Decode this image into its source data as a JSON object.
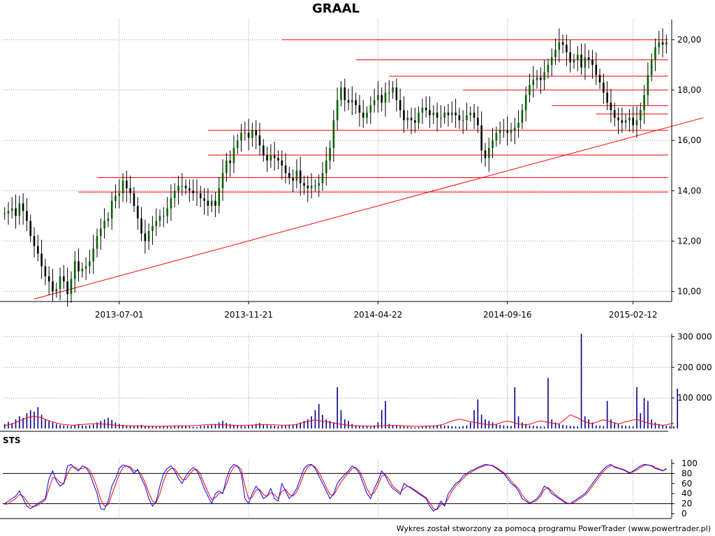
{
  "chart_data": [
    {
      "panel": "price",
      "type": "candlestick",
      "title": "GRAAL",
      "x_dates": [
        "2013-07-01",
        "2013-11-21",
        "2014-04-22",
        "2014-09-16",
        "2015-02-12"
      ],
      "y_ticks": [
        "10,00",
        "12,00",
        "14,00",
        "16,00",
        "18,00",
        "20,00"
      ],
      "ylim": [
        9.6,
        20.8
      ],
      "grid": true,
      "y_axis_side": "right",
      "series_color": "#006400",
      "line_color": "#ff0000",
      "close_series": [
        13.1,
        13.2,
        13.3,
        13.0,
        13.5,
        13.2,
        12.8,
        12.2,
        11.8,
        11.5,
        11.0,
        10.6,
        10.4,
        10.0,
        10.1,
        10.6,
        10.4,
        9.9,
        10.5,
        11.2,
        10.8,
        10.9,
        11.0,
        11.2,
        11.7,
        12.2,
        12.5,
        12.8,
        12.9,
        13.6,
        13.8,
        13.9,
        14.4,
        14.1,
        13.9,
        13.4,
        12.9,
        12.3,
        12.0,
        12.4,
        12.6,
        12.8,
        13.0,
        13.0,
        13.3,
        13.7,
        14.0,
        14.2,
        14.2,
        14.1,
        14.0,
        13.9,
        13.9,
        13.7,
        13.6,
        13.4,
        13.6,
        13.4,
        14.1,
        14.7,
        15.2,
        15.1,
        15.7,
        16.0,
        16.3,
        16.3,
        16.1,
        16.4,
        16.2,
        15.8,
        15.4,
        15.2,
        15.4,
        15.3,
        15.2,
        15.0,
        14.7,
        14.5,
        14.4,
        14.8,
        14.3,
        14.2,
        14.1,
        14.2,
        14.2,
        14.3,
        14.7,
        15.2,
        15.7,
        16.8,
        17.6,
        18.1,
        17.6,
        17.5,
        17.6,
        17.4,
        17.1,
        16.9,
        17.1,
        17.4,
        17.6,
        17.8,
        17.5,
        17.9,
        17.9,
        18.1,
        17.6,
        17.2,
        16.8,
        16.9,
        16.8,
        16.7,
        17.1,
        17.3,
        17.2,
        17.0,
        17.1,
        16.9,
        16.9,
        17.1,
        17.0,
        17.1,
        17.0,
        16.8,
        16.8,
        17.0,
        17.1,
        16.9,
        16.6,
        15.6,
        15.3,
        15.7,
        16.0,
        16.3,
        16.4,
        16.4,
        16.3,
        16.4,
        16.5,
        16.7,
        17.2,
        17.8,
        18.2,
        18.4,
        18.5,
        18.4,
        18.7,
        19.0,
        19.3,
        19.6,
        19.9,
        19.8,
        19.5,
        19.1,
        19.2,
        19.4,
        18.9,
        19.3,
        19.2,
        19.0,
        18.6,
        18.3,
        17.9,
        17.5,
        17.2,
        16.9,
        16.8,
        16.7,
        16.8,
        16.9,
        16.6,
        16.8,
        17.2,
        17.8,
        18.6,
        19.2,
        19.7,
        19.9,
        19.8,
        19.9
      ],
      "support_resistance_levels": [
        20.0,
        19.2,
        18.55,
        18.0,
        17.38,
        17.05,
        16.4,
        15.42,
        14.52,
        13.95
      ],
      "trendline": {
        "from": {
          "date_index": 8,
          "value": 9.7
        },
        "to": {
          "date_index": 189,
          "value": 16.9
        }
      }
    },
    {
      "panel": "volume",
      "type": "bar",
      "y_ticks": [
        "100 000",
        "200 000",
        "300 000"
      ],
      "ylim": [
        0,
        310000
      ],
      "bar_color": "#00008b",
      "avg_line_color": "#ff0000",
      "grid": true,
      "y_axis_side": "right",
      "values": [
        15000,
        22000,
        18000,
        30000,
        40000,
        35000,
        50000,
        60000,
        55000,
        70000,
        45000,
        30000,
        25000,
        20000,
        15000,
        12000,
        10000,
        9000,
        8000,
        12000,
        15000,
        10000,
        9000,
        11000,
        14000,
        20000,
        25000,
        30000,
        35000,
        28000,
        20000,
        15000,
        12000,
        10000,
        9000,
        8000,
        10000,
        12000,
        9000,
        8000,
        7000,
        6000,
        8000,
        9000,
        7000,
        6000,
        8000,
        9000,
        10000,
        8000,
        7000,
        6000,
        5000,
        8000,
        9000,
        10000,
        12000,
        15000,
        20000,
        25000,
        18000,
        15000,
        12000,
        10000,
        9000,
        8000,
        10000,
        12000,
        15000,
        18000,
        14000,
        12000,
        10000,
        9000,
        8000,
        9000,
        10000,
        11000,
        12000,
        15000,
        20000,
        25000,
        30000,
        40000,
        60000,
        80000,
        45000,
        30000,
        25000,
        20000,
        135000,
        60000,
        30000,
        25000,
        15000,
        10000,
        9000,
        8000,
        7000,
        6000,
        10000,
        20000,
        60000,
        90000,
        15000,
        10000,
        9000,
        8000,
        7000,
        6000,
        5000,
        4000,
        5000,
        6000,
        7000,
        8000,
        9000,
        10000,
        12000,
        10000,
        9000,
        8000,
        7000,
        6000,
        8000,
        10000,
        20000,
        60000,
        95000,
        45000,
        30000,
        25000,
        20000,
        15000,
        12000,
        10000,
        9000,
        8000,
        135000,
        40000,
        20000,
        15000,
        10000,
        9000,
        8000,
        7000,
        6000,
        165000,
        30000,
        20000,
        15000,
        12000,
        10000,
        9000,
        8000,
        7000,
        310000,
        40000,
        30000,
        20000,
        10000,
        9000,
        8000,
        90000,
        30000,
        20000,
        15000,
        10000,
        9000,
        8000,
        7000,
        135000,
        50000,
        100000,
        90000,
        30000,
        20000,
        15000,
        10000,
        9000,
        8000,
        7000,
        130000
      ],
      "average": [
        10000,
        12000,
        15000,
        20000,
        25000,
        30000,
        35000,
        38000,
        40000,
        38000,
        35000,
        30000,
        25000,
        22000,
        18000,
        15000,
        13000,
        12000,
        11000,
        11000,
        12000,
        13000,
        14000,
        15000,
        16000,
        16000,
        15000,
        14000,
        13000,
        12000,
        11000,
        10000,
        9500,
        9000,
        8800,
        8500,
        8400,
        8200,
        8000,
        7800,
        7600,
        7500,
        7600,
        7800,
        8000,
        8200,
        8400,
        8600,
        8800,
        9000,
        9200,
        9500,
        10000,
        11000,
        12000,
        13000,
        13500,
        13000,
        12500,
        12000,
        11500,
        11000,
        10500,
        10000,
        10000,
        10500,
        11000,
        11500,
        12000,
        12500,
        13000,
        13000,
        12500,
        12000,
        11500,
        11000,
        11000,
        11500,
        12000,
        14000,
        17000,
        20000,
        23000,
        26000,
        28000,
        26000,
        24000,
        22000,
        20000,
        18000,
        16000,
        14000,
        12000,
        11000,
        10000,
        9500,
        9000,
        8500,
        8000,
        8000,
        8200,
        8500,
        9000,
        9500,
        10000,
        10500,
        10000,
        9500,
        9000,
        8500,
        8000,
        7500,
        7500,
        7800,
        8000,
        8500,
        9000,
        10000,
        12000,
        15000,
        20000,
        25000,
        28000,
        30000,
        28000,
        25000,
        22000,
        20000,
        18000,
        16000,
        14000,
        12000,
        12000,
        14000,
        18000,
        22000,
        24000,
        22000,
        18000,
        15000,
        13000,
        12000,
        14000,
        18000,
        22000,
        25000,
        23000,
        20000,
        18000,
        16000,
        15000,
        25000,
        35000,
        45000,
        40000,
        35000,
        28000,
        22000,
        18000,
        16000,
        20000,
        25000,
        28000,
        25000,
        22000,
        18000,
        15000,
        18000,
        22000,
        25000,
        28000,
        30000,
        26000,
        22000,
        18000,
        15000,
        13000,
        12000,
        11000,
        12000,
        15000,
        18000
      ]
    },
    {
      "panel": "oscillator",
      "type": "line",
      "label": "STS",
      "y_ticks": [
        "0",
        "20",
        "40",
        "60",
        "80",
        "100"
      ],
      "ylim": [
        0,
        100
      ],
      "reference_lines": [
        20,
        80
      ],
      "grid": true,
      "y_axis_side": "right",
      "series": [
        {
          "color": "#0000ff",
          "values": [
            20,
            25,
            30,
            35,
            45,
            30,
            15,
            10,
            15,
            20,
            25,
            30,
            70,
            85,
            65,
            55,
            60,
            95,
            98,
            90,
            85,
            95,
            92,
            80,
            60,
            40,
            10,
            8,
            25,
            55,
            70,
            90,
            97,
            95,
            90,
            80,
            88,
            70,
            55,
            30,
            15,
            25,
            55,
            80,
            90,
            95,
            85,
            70,
            60,
            75,
            85,
            92,
            85,
            70,
            50,
            35,
            20,
            40,
            45,
            40,
            70,
            90,
            98,
            95,
            80,
            30,
            20,
            40,
            55,
            45,
            30,
            35,
            50,
            30,
            25,
            60,
            45,
            30,
            38,
            50,
            70,
            90,
            97,
            98,
            90,
            75,
            60,
            45,
            30,
            40,
            60,
            70,
            78,
            85,
            95,
            90,
            80,
            60,
            40,
            30,
            50,
            65,
            85,
            75,
            60,
            50,
            45,
            38,
            60,
            55,
            50,
            45,
            40,
            35,
            30,
            15,
            5,
            10,
            25,
            15,
            40,
            50,
            60,
            65,
            75,
            80,
            85,
            88,
            92,
            95,
            98,
            97,
            95,
            90,
            85,
            80,
            70,
            60,
            55,
            45,
            30,
            25,
            20,
            25,
            30,
            40,
            55,
            50,
            40,
            35,
            30,
            25,
            20,
            20,
            25,
            30,
            35,
            40,
            50,
            60,
            70,
            80,
            88,
            95,
            98,
            92,
            90,
            88,
            85,
            80,
            85,
            90,
            95,
            98,
            97,
            95,
            90,
            88,
            85,
            90
          ]
        },
        {
          "color": "#ff0000",
          "values": [
            18,
            20,
            25,
            30,
            38,
            35,
            25,
            15,
            14,
            17,
            22,
            27,
            50,
            72,
            70,
            62,
            60,
            80,
            92,
            93,
            88,
            90,
            92,
            87,
            72,
            52,
            28,
            15,
            18,
            38,
            58,
            78,
            92,
            95,
            93,
            85,
            86,
            78,
            62,
            42,
            25,
            22,
            40,
            65,
            83,
            90,
            90,
            78,
            68,
            68,
            78,
            87,
            88,
            78,
            60,
            43,
            28,
            32,
            40,
            42,
            58,
            80,
            93,
            95,
            88,
            55,
            30,
            33,
            47,
            48,
            38,
            35,
            42,
            38,
            30,
            45,
            48,
            38,
            35,
            43,
            60,
            80,
            93,
            97,
            93,
            82,
            68,
            52,
            38,
            37,
            50,
            63,
            73,
            81,
            90,
            92,
            85,
            70,
            50,
            37,
            42,
            57,
            75,
            78,
            68,
            55,
            48,
            42,
            50,
            55,
            52,
            47,
            42,
            37,
            32,
            22,
            10,
            8,
            18,
            18,
            30,
            45,
            55,
            62,
            70,
            77,
            82,
            86,
            90,
            93,
            96,
            97,
            96,
            92,
            87,
            82,
            75,
            65,
            57,
            50,
            37,
            28,
            22,
            23,
            27,
            35,
            48,
            52,
            45,
            38,
            32,
            27,
            22,
            20,
            22,
            27,
            32,
            37,
            45,
            55,
            65,
            75,
            84,
            91,
            96,
            94,
            91,
            89,
            86,
            82,
            83,
            87,
            92,
            96,
            97,
            96,
            92,
            89,
            86,
            88
          ]
        }
      ]
    }
  ],
  "labels": {
    "title": "GRAAL",
    "oscillator_label": "STS",
    "footer": "Wykres został stworzony za pomocą programu PowerTrader (www.powertrader.pl)"
  }
}
